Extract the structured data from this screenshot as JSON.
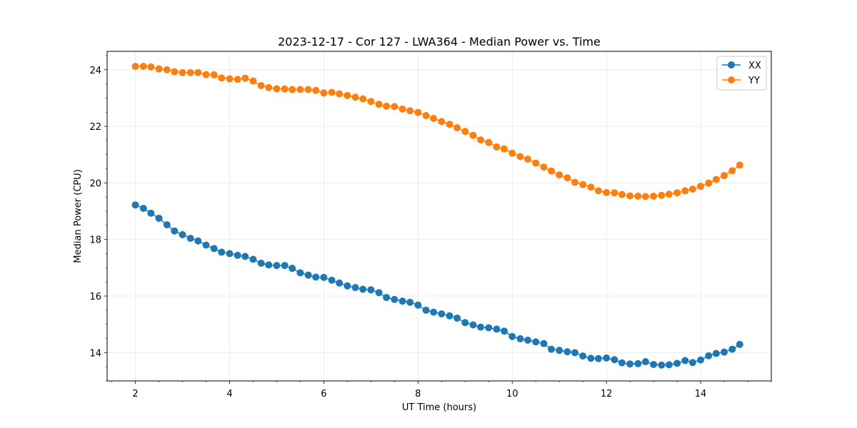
{
  "chart_data": {
    "type": "line",
    "title": "2023-12-17 - Cor 127 - LWA364 - Median Power vs. Time",
    "xlabel": "UT Time (hours)",
    "ylabel": "Median Power (CPU)",
    "xlim": [
      1.4,
      15.5
    ],
    "ylim": [
      13.0,
      24.65
    ],
    "xticks": [
      2,
      4,
      6,
      8,
      10,
      12,
      14
    ],
    "yticks": [
      14,
      16,
      18,
      20,
      22,
      24
    ],
    "grid": true,
    "legend_position": "top-right",
    "x": [
      2.0,
      2.17,
      2.33,
      2.5,
      2.67,
      2.83,
      3.0,
      3.17,
      3.33,
      3.5,
      3.67,
      3.83,
      4.0,
      4.17,
      4.33,
      4.5,
      4.67,
      4.83,
      5.0,
      5.17,
      5.33,
      5.5,
      5.67,
      5.83,
      6.0,
      6.17,
      6.33,
      6.5,
      6.67,
      6.83,
      7.0,
      7.17,
      7.33,
      7.5,
      7.67,
      7.83,
      8.0,
      8.17,
      8.33,
      8.5,
      8.67,
      8.83,
      9.0,
      9.17,
      9.33,
      9.5,
      9.67,
      9.83,
      10.0,
      10.17,
      10.33,
      10.5,
      10.67,
      10.83,
      11.0,
      11.17,
      11.33,
      11.5,
      11.67,
      11.83,
      12.0,
      12.17,
      12.33,
      12.5,
      12.67,
      12.83,
      13.0,
      13.17,
      13.33,
      13.5,
      13.67,
      13.83,
      14.0,
      14.17,
      14.33,
      14.5,
      14.67,
      14.83
    ],
    "series": [
      {
        "name": "XX",
        "color": "#1f77b4",
        "values": [
          19.22,
          19.1,
          18.93,
          18.75,
          18.52,
          18.3,
          18.17,
          18.04,
          17.95,
          17.8,
          17.68,
          17.55,
          17.5,
          17.44,
          17.4,
          17.3,
          17.16,
          17.1,
          17.08,
          17.08,
          16.98,
          16.82,
          16.74,
          16.67,
          16.66,
          16.56,
          16.46,
          16.36,
          16.3,
          16.24,
          16.22,
          16.12,
          15.95,
          15.88,
          15.82,
          15.78,
          15.68,
          15.5,
          15.43,
          15.37,
          15.3,
          15.22,
          15.06,
          14.98,
          14.9,
          14.88,
          14.83,
          14.76,
          14.57,
          14.49,
          14.44,
          14.38,
          14.32,
          14.12,
          14.08,
          14.03,
          14.0,
          13.88,
          13.8,
          13.79,
          13.81,
          13.75,
          13.64,
          13.6,
          13.61,
          13.68,
          13.58,
          13.56,
          13.57,
          13.62,
          13.72,
          13.65,
          13.74,
          13.89,
          13.97,
          14.02,
          14.12,
          14.29
        ]
      },
      {
        "name": "YY",
        "color": "#ff7f0e",
        "values": [
          24.12,
          24.12,
          24.1,
          24.03,
          24.0,
          23.93,
          23.9,
          23.9,
          23.9,
          23.83,
          23.82,
          23.71,
          23.68,
          23.66,
          23.7,
          23.6,
          23.44,
          23.37,
          23.33,
          23.32,
          23.3,
          23.3,
          23.3,
          23.27,
          23.18,
          23.2,
          23.15,
          23.09,
          23.03,
          22.97,
          22.88,
          22.78,
          22.71,
          22.7,
          22.61,
          22.55,
          22.49,
          22.38,
          22.28,
          22.17,
          22.07,
          21.95,
          21.82,
          21.68,
          21.52,
          21.43,
          21.27,
          21.2,
          21.05,
          20.93,
          20.84,
          20.7,
          20.56,
          20.42,
          20.28,
          20.18,
          20.02,
          19.94,
          19.85,
          19.72,
          19.66,
          19.65,
          19.59,
          19.54,
          19.53,
          19.52,
          19.53,
          19.56,
          19.6,
          19.65,
          19.72,
          19.78,
          19.88,
          19.99,
          20.12,
          20.26,
          20.43,
          20.63
        ]
      }
    ]
  }
}
